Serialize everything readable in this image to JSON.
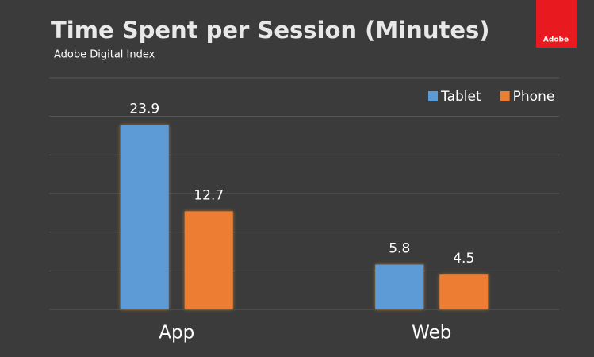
{
  "chart_data": {
    "type": "bar",
    "title": "Time Spent per Session (Minutes)",
    "subtitle": "Adobe Digital Index",
    "logo_text": "Adobe",
    "categories": [
      "App",
      "Web"
    ],
    "series": [
      {
        "name": "Tablet",
        "color": "#5b9bd5",
        "values": [
          23.9,
          5.8
        ]
      },
      {
        "name": "Phone",
        "color": "#ed7d31",
        "values": [
          12.7,
          4.5
        ]
      }
    ],
    "ylim": [
      0,
      30
    ],
    "yticks": [
      0,
      5,
      10,
      15,
      20,
      25,
      30
    ],
    "grid": true,
    "legend": "top-right"
  }
}
